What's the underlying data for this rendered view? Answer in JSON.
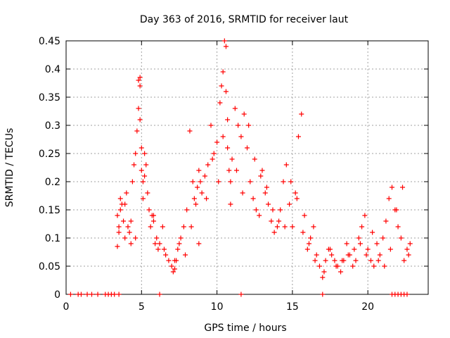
{
  "chart_data": {
    "type": "scatter",
    "title": "Day 363 of 2016, SRMTID for receiver laut",
    "xlabel": "GPS time / hours",
    "ylabel": "SRMTID / TECUs",
    "xlim": [
      0,
      24
    ],
    "ylim": [
      0,
      0.45
    ],
    "xticks": [
      "0",
      "5",
      "10",
      "15",
      "20"
    ],
    "yticks": [
      "0",
      "0.05",
      "0.1",
      "0.15",
      "0.2",
      "0.25",
      "0.3",
      "0.35",
      "0.4",
      "0.45"
    ],
    "grid": true,
    "marker": "+",
    "color": "#ff0000",
    "series": [
      {
        "name": "SRMTID",
        "x": [
          0.3,
          0.8,
          1.0,
          1.4,
          1.7,
          2.1,
          2.6,
          2.8,
          3.0,
          3.2,
          3.5,
          6.2,
          11.6,
          17.0,
          21.6,
          21.8,
          22.0,
          22.2,
          22.4,
          22.6,
          3.4,
          3.4,
          3.5,
          3.6,
          3.6,
          3.7,
          3.8,
          3.9,
          4.0,
          4.1,
          4.2,
          4.3,
          4.4,
          4.5,
          4.6,
          4.7,
          4.8,
          4.8,
          4.9,
          4.9,
          4.9,
          5.0,
          5.0,
          5.1,
          5.1,
          5.2,
          5.3,
          5.4,
          5.5,
          5.6,
          5.7,
          5.8,
          5.9,
          6.0,
          6.1,
          6.2,
          6.4,
          6.6,
          6.8,
          7.0,
          7.1,
          7.2,
          7.3,
          7.4,
          7.5,
          7.6,
          7.8,
          8.0,
          8.2,
          8.4,
          8.5,
          8.6,
          8.7,
          8.8,
          8.9,
          9.0,
          9.2,
          9.4,
          9.6,
          9.8,
          10.0,
          10.2,
          10.3,
          10.4,
          10.5,
          10.6,
          10.6,
          10.7,
          10.7,
          10.8,
          10.9,
          11.0,
          11.2,
          11.4,
          11.6,
          11.8,
          12.0,
          12.2,
          12.4,
          12.6,
          12.8,
          13.0,
          13.2,
          13.4,
          13.6,
          13.8,
          14.0,
          14.2,
          14.4,
          14.6,
          14.8,
          15.0,
          15.2,
          15.4,
          15.6,
          15.8,
          16.0,
          16.2,
          16.4,
          16.6,
          16.8,
          17.0,
          17.2,
          17.4,
          17.6,
          17.8,
          18.0,
          18.2,
          18.4,
          18.6,
          18.8,
          19.0,
          19.2,
          19.4,
          19.6,
          19.8,
          20.0,
          20.2,
          20.4,
          20.6,
          20.8,
          21.0,
          21.2,
          21.4,
          21.6,
          21.8,
          22.0,
          22.2,
          22.4,
          22.6,
          22.8,
          3.5,
          3.9,
          4.3,
          4.6,
          5.2,
          5.8,
          6.5,
          7.2,
          7.9,
          8.3,
          8.8,
          9.3,
          9.7,
          10.1,
          10.4,
          10.9,
          11.3,
          11.7,
          12.1,
          12.5,
          12.9,
          13.3,
          13.7,
          14.1,
          14.5,
          14.9,
          15.3,
          15.7,
          16.1,
          16.5,
          17.1,
          17.5,
          17.9,
          18.3,
          18.7,
          19.1,
          19.5,
          19.9,
          20.3,
          20.7,
          21.1,
          21.5,
          21.9,
          22.3,
          22.7
        ],
        "y": [
          0,
          0,
          0,
          0,
          0,
          0,
          0,
          0,
          0,
          0,
          0,
          0,
          0,
          0,
          0,
          0,
          0,
          0,
          0,
          0,
          0.14,
          0.085,
          0.12,
          0.15,
          0.17,
          0.16,
          0.13,
          0.1,
          0.18,
          0.12,
          0.11,
          0.09,
          0.2,
          0.23,
          0.25,
          0.29,
          0.33,
          0.38,
          0.385,
          0.37,
          0.31,
          0.26,
          0.22,
          0.2,
          0.17,
          0.25,
          0.23,
          0.18,
          0.15,
          0.12,
          0.14,
          0.13,
          0.09,
          0.1,
          0.08,
          0.09,
          0.12,
          0.07,
          0.06,
          0.05,
          0.04,
          0.045,
          0.06,
          0.08,
          0.09,
          0.1,
          0.12,
          0.15,
          0.29,
          0.2,
          0.17,
          0.16,
          0.19,
          0.22,
          0.2,
          0.18,
          0.21,
          0.23,
          0.3,
          0.25,
          0.27,
          0.34,
          0.37,
          0.395,
          0.45,
          0.44,
          0.36,
          0.31,
          0.26,
          0.22,
          0.2,
          0.24,
          0.33,
          0.3,
          0.28,
          0.32,
          0.26,
          0.2,
          0.17,
          0.15,
          0.14,
          0.22,
          0.18,
          0.16,
          0.13,
          0.11,
          0.12,
          0.15,
          0.2,
          0.23,
          0.16,
          0.12,
          0.18,
          0.28,
          0.32,
          0.14,
          0.08,
          0.1,
          0.12,
          0.07,
          0.05,
          0.03,
          0.06,
          0.08,
          0.07,
          0.06,
          0.05,
          0.04,
          0.06,
          0.09,
          0.07,
          0.05,
          0.06,
          0.1,
          0.12,
          0.14,
          0.08,
          0.06,
          0.05,
          0.09,
          0.07,
          0.1,
          0.13,
          0.17,
          0.19,
          0.15,
          0.12,
          0.1,
          0.06,
          0.08,
          0.09,
          0.11,
          0.16,
          0.13,
          0.1,
          0.21,
          0.14,
          0.08,
          0.06,
          0.07,
          0.12,
          0.09,
          0.17,
          0.24,
          0.2,
          0.28,
          0.16,
          0.22,
          0.18,
          0.3,
          0.24,
          0.21,
          0.19,
          0.15,
          0.13,
          0.12,
          0.2,
          0.17,
          0.11,
          0.09,
          0.06,
          0.04,
          0.08,
          0.05,
          0.06,
          0.07,
          0.08,
          0.09,
          0.07,
          0.11,
          0.06,
          0.05,
          0.08,
          0.15,
          0.19,
          0.07
        ]
      }
    ]
  }
}
